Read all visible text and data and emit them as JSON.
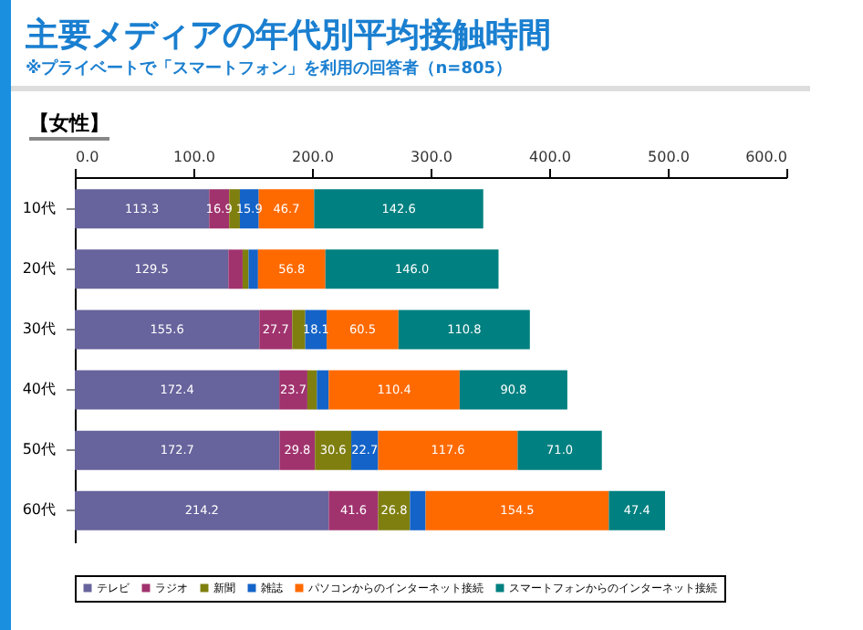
{
  "chart_data": {
    "type": "bar",
    "orientation": "horizontal",
    "stacked": true,
    "title": "主要メディアの年代別平均接触時間",
    "subtitle": "※プライベートで「スマートフォン」を利用の回答者（n=805）",
    "annotations": [
      "【女性】"
    ],
    "categories": [
      "10代",
      "20代",
      "30代",
      "40代",
      "50代",
      "60代"
    ],
    "xlim": [
      0,
      600
    ],
    "xticks": [
      {
        "value": 0,
        "label": "0.0"
      },
      {
        "value": 100,
        "label": "100.0"
      },
      {
        "value": 200,
        "label": "200.0"
      },
      {
        "value": 300,
        "label": "300.0"
      },
      {
        "value": 400,
        "label": "400.0"
      },
      {
        "value": 500,
        "label": "500.0"
      },
      {
        "value": 600,
        "label": "600.0"
      }
    ],
    "legend": "bottom",
    "series": [
      {
        "name": "テレビ",
        "color": "#67639c",
        "values": [
          113.3,
          129.5,
          155.6,
          172.4,
          172.7,
          214.2
        ],
        "value_labels": [
          "113.3",
          "129.5",
          "155.6",
          "172.4",
          "172.7",
          "214.2"
        ]
      },
      {
        "name": "ラジオ",
        "color": "#a0336e",
        "values": [
          16.9,
          12,
          27.7,
          23.7,
          29.8,
          41.6
        ],
        "value_labels": [
          "16.9",
          null,
          "27.7",
          "23.7",
          "29.8",
          "41.6"
        ]
      },
      {
        "name": "新聞",
        "color": "#7f7f10",
        "values": [
          9,
          5,
          11,
          8,
          30.6,
          26.8
        ],
        "value_labels": [
          null,
          null,
          null,
          null,
          "30.6",
          "26.8"
        ]
      },
      {
        "name": "雑誌",
        "color": "#1463c8",
        "values": [
          15.9,
          8,
          18.1,
          10,
          22.7,
          13.2
        ],
        "value_labels": [
          "15.9",
          null,
          "18.1",
          null,
          "22.7",
          null
        ]
      },
      {
        "name": "パソコンからのインターネット接続",
        "color": "#ff6a00",
        "values": [
          46.7,
          56.8,
          60.5,
          110.4,
          117.6,
          154.5
        ],
        "value_labels": [
          "46.7",
          "56.8",
          "60.5",
          "110.4",
          "117.6",
          "154.5"
        ]
      },
      {
        "name": "スマートフォンからのインターネット接続",
        "color": "#008080",
        "values": [
          142.6,
          146.0,
          110.8,
          90.8,
          71.0,
          47.4
        ],
        "value_labels": [
          "142.6",
          "146.0",
          "110.8",
          "90.8",
          "71.0",
          "47.4"
        ]
      }
    ]
  }
}
